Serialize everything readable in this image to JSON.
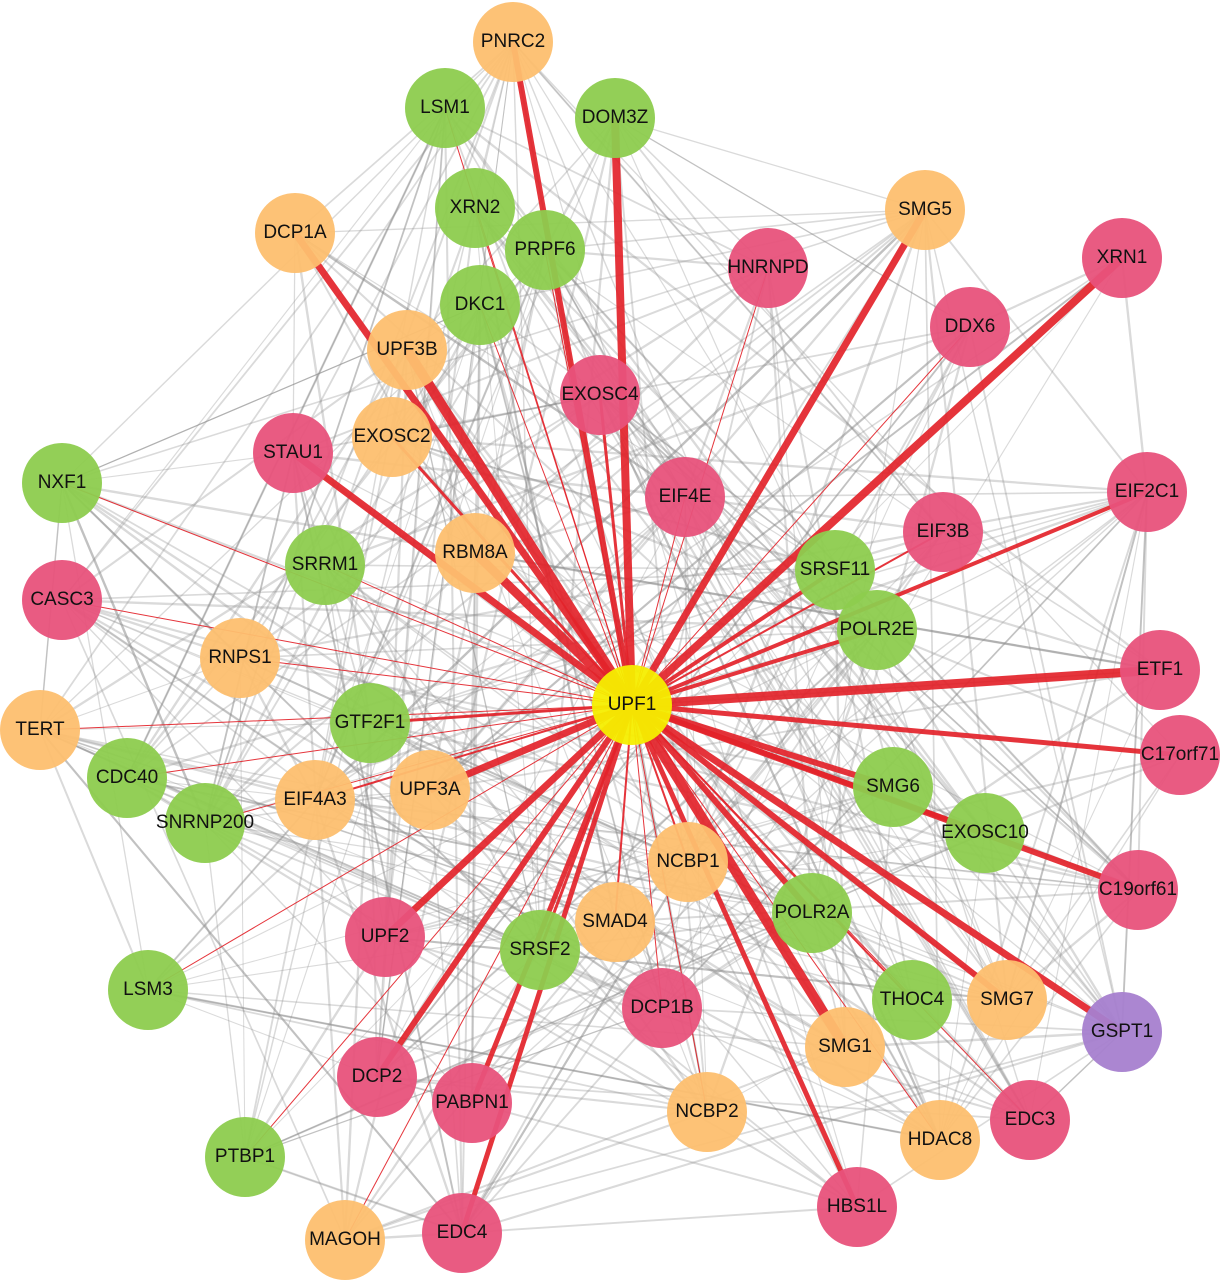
{
  "nodes": [
    {
      "label": "UPF1",
      "color": "#f6ee00"
    },
    {
      "label": "PNRC2",
      "color": "#fdbf6f"
    },
    {
      "label": "LSM1",
      "color": "#8dcc4e"
    },
    {
      "label": "DOM3Z",
      "color": "#8dcc4e"
    },
    {
      "label": "XRN2",
      "color": "#8dcc4e"
    },
    {
      "label": "PRPF6",
      "color": "#8dcc4e"
    },
    {
      "label": "DCP1A",
      "color": "#fdbf6f"
    },
    {
      "label": "SMG5",
      "color": "#fdbf6f"
    },
    {
      "label": "HNRNPD",
      "color": "#e8527b"
    },
    {
      "label": "XRN1",
      "color": "#e8527b"
    },
    {
      "label": "DKC1",
      "color": "#8dcc4e"
    },
    {
      "label": "DDX6",
      "color": "#e8527b"
    },
    {
      "label": "UPF3B",
      "color": "#fdbf6f"
    },
    {
      "label": "EXOSC4",
      "color": "#e8527b"
    },
    {
      "label": "EXOSC2",
      "color": "#fdbf6f"
    },
    {
      "label": "STAU1",
      "color": "#e8527b"
    },
    {
      "label": "EIF4E",
      "color": "#e8527b"
    },
    {
      "label": "NXF1",
      "color": "#8dcc4e"
    },
    {
      "label": "EIF2C1",
      "color": "#e8527b"
    },
    {
      "label": "EIF3B",
      "color": "#e8527b"
    },
    {
      "label": "SRRM1",
      "color": "#8dcc4e"
    },
    {
      "label": "RBM8A",
      "color": "#fdbf6f"
    },
    {
      "label": "SRSF11",
      "color": "#8dcc4e"
    },
    {
      "label": "CASC3",
      "color": "#e8527b"
    },
    {
      "label": "POLR2E",
      "color": "#8dcc4e"
    },
    {
      "label": "RNPS1",
      "color": "#fdbf6f"
    },
    {
      "label": "ETF1",
      "color": "#e8527b"
    },
    {
      "label": "TERT",
      "color": "#fdbf6f"
    },
    {
      "label": "GTF2F1",
      "color": "#8dcc4e"
    },
    {
      "label": "C17orf71",
      "color": "#e8527b"
    },
    {
      "label": "CDC40",
      "color": "#8dcc4e"
    },
    {
      "label": "EIF4A3",
      "color": "#fdbf6f"
    },
    {
      "label": "UPF3A",
      "color": "#fdbf6f"
    },
    {
      "label": "SMG6",
      "color": "#8dcc4e"
    },
    {
      "label": "SNRNP200",
      "color": "#8dcc4e"
    },
    {
      "label": "EXOSC10",
      "color": "#8dcc4e"
    },
    {
      "label": "NCBP1",
      "color": "#fdbf6f"
    },
    {
      "label": "C19orf61",
      "color": "#e8527b"
    },
    {
      "label": "POLR2A",
      "color": "#8dcc4e"
    },
    {
      "label": "SMAD4",
      "color": "#fdbf6f"
    },
    {
      "label": "UPF2",
      "color": "#e8527b"
    },
    {
      "label": "SRSF2",
      "color": "#8dcc4e"
    },
    {
      "label": "LSM3",
      "color": "#8dcc4e"
    },
    {
      "label": "THOC4",
      "color": "#8dcc4e"
    },
    {
      "label": "SMG7",
      "color": "#fdbf6f"
    },
    {
      "label": "GSPT1",
      "color": "#a67fcf"
    },
    {
      "label": "DCP1B",
      "color": "#e8527b"
    },
    {
      "label": "SMG1",
      "color": "#fdbf6f"
    },
    {
      "label": "DCP2",
      "color": "#e8527b"
    },
    {
      "label": "PABPN1",
      "color": "#e8527b"
    },
    {
      "label": "NCBP2",
      "color": "#fdbf6f"
    },
    {
      "label": "HDAC8",
      "color": "#fdbf6f"
    },
    {
      "label": "EDC3",
      "color": "#e8527b"
    },
    {
      "label": "PTBP1",
      "color": "#8dcc4e"
    },
    {
      "label": "HBS1L",
      "color": "#e8527b"
    },
    {
      "label": "EDC4",
      "color": "#e8527b"
    },
    {
      "label": "MAGOH",
      "color": "#fdbf6f"
    }
  ]
}
